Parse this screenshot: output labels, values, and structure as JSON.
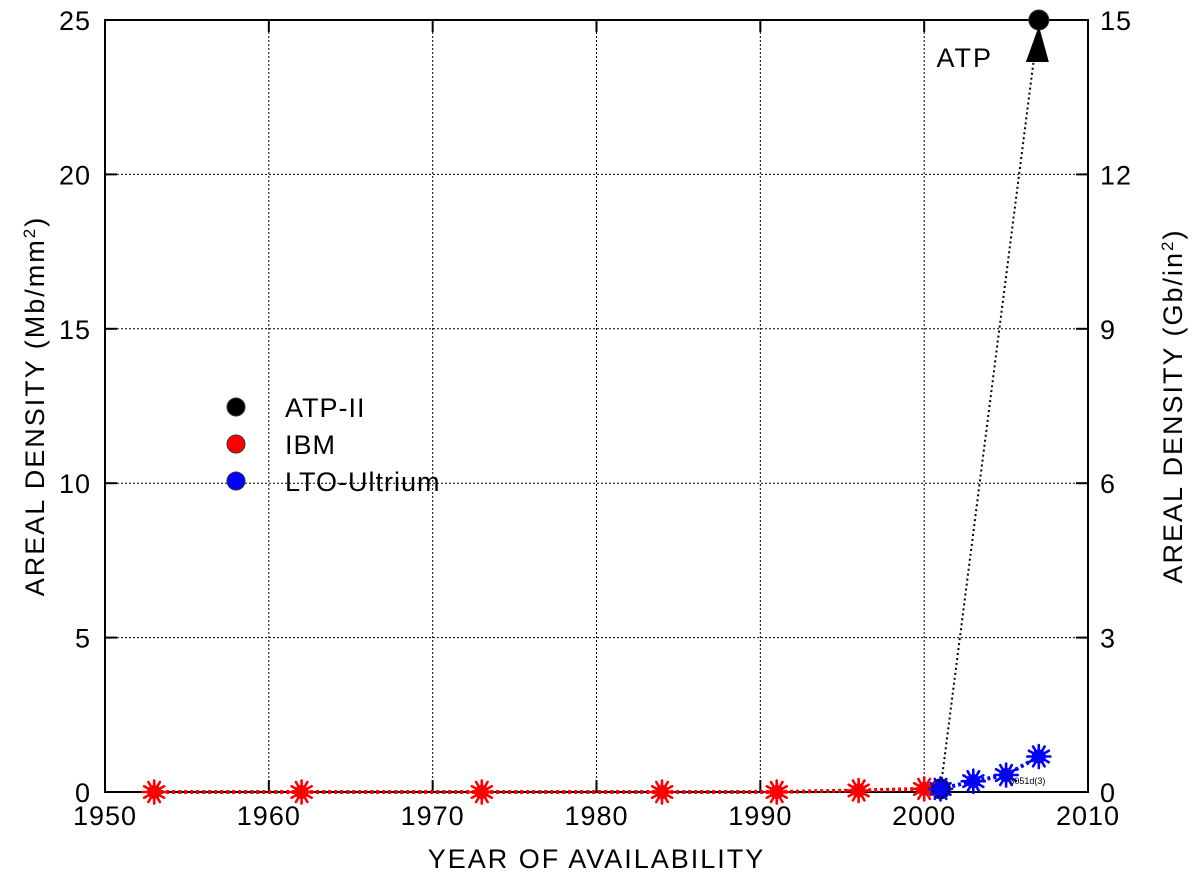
{
  "chart_data": {
    "type": "line",
    "xlabel": "YEAR OF AVAILABILITY",
    "ylabel": "AREAL DENSITY (Mb/mm",
    "ylabel_sup": "2",
    "ylabel_end": ")",
    "y2label": "AREAL DENSITY (Gb/in",
    "y2label_sup": "2",
    "y2label_end": ")",
    "xlim": [
      1950,
      2010
    ],
    "ylim": [
      0,
      25
    ],
    "y2lim": [
      0,
      15
    ],
    "x_ticks": [
      "1950",
      "1960",
      "1970",
      "1980",
      "1990",
      "2000",
      "2010"
    ],
    "y_ticks": [
      "0",
      "5",
      "10",
      "15",
      "20",
      "25"
    ],
    "y2_ticks": [
      "0",
      "3",
      "6",
      "9",
      "12",
      "15"
    ],
    "grid": true,
    "legend_position": "center-left",
    "series": [
      {
        "name": "ATP-II",
        "color": "#000000",
        "marker": "circle",
        "line": "dotted",
        "x": [
          2001,
          2007
        ],
        "y": [
          0.1,
          25
        ]
      },
      {
        "name": "IBM",
        "color": "#ff0000",
        "marker": "star",
        "line": "dotted",
        "x": [
          1953,
          1962,
          1973,
          1984,
          1991,
          1996,
          2000
        ],
        "y": [
          0.0,
          0.0,
          0.0,
          0.0,
          0.0,
          0.05,
          0.1
        ]
      },
      {
        "name": "LTO-Ultrium",
        "color": "#0000ff",
        "marker": "star",
        "line": "dotted",
        "x": [
          2001,
          2003,
          2005,
          2007
        ],
        "y": [
          0.1,
          0.35,
          0.55,
          1.15
        ]
      }
    ],
    "annotations": [
      {
        "text": "ATP",
        "x": 2004.2,
        "y": 23.8
      },
      {
        "text": "3051d(3)",
        "x": 2005.2,
        "y": 0.35
      }
    ]
  }
}
